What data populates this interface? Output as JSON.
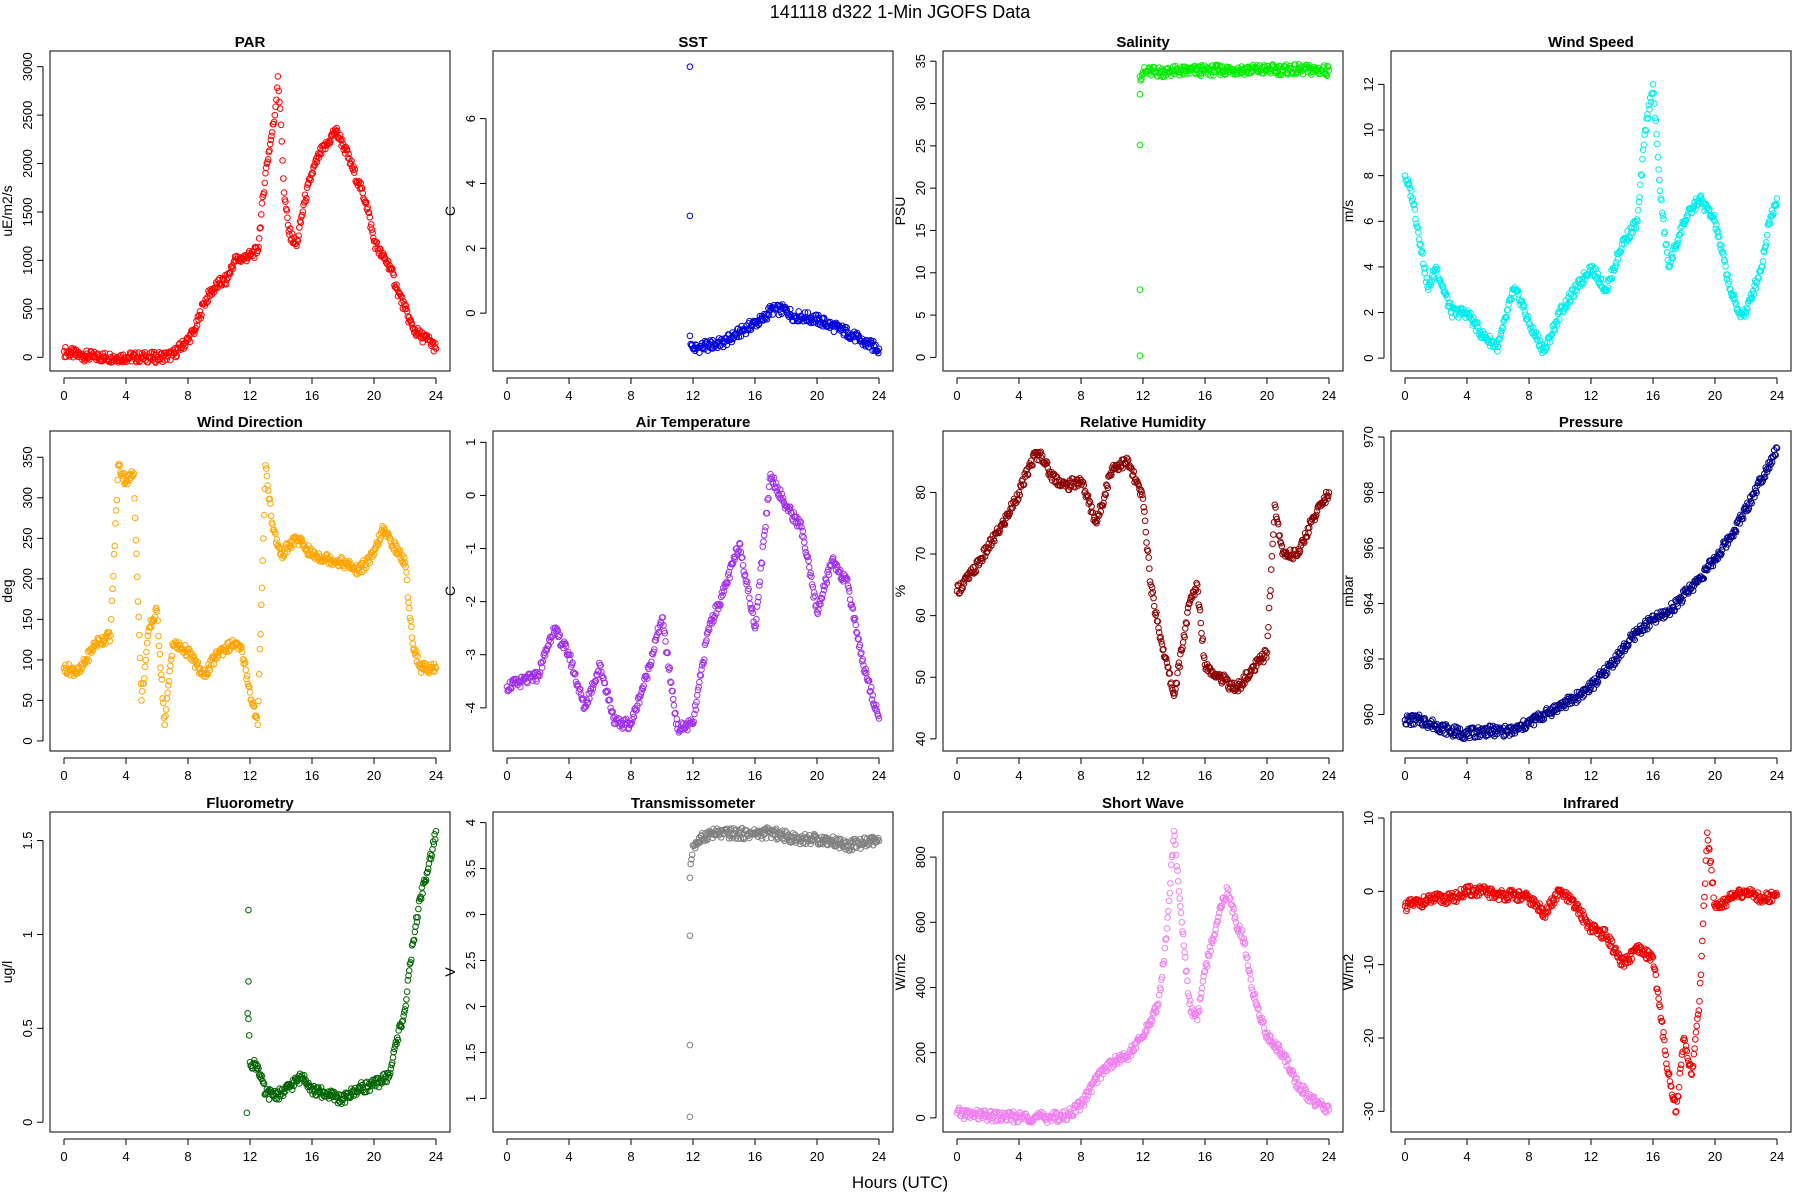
{
  "figure": {
    "suptitle": "141118   d322   1-Min  JGOFS Data",
    "xlabel": "Hours (UTC)"
  },
  "chart_data": [
    {
      "type": "scatter",
      "title": "PAR",
      "ylabel": "uE/m2/s",
      "color": "#ff0000",
      "xlim": [
        0,
        24
      ],
      "ylim": [
        -80,
        3100
      ],
      "xticks": [
        0,
        4,
        8,
        12,
        16,
        20,
        24
      ],
      "yticks": [
        0,
        500,
        1000,
        1500,
        2000,
        2500,
        3000
      ],
      "x": [
        0,
        1,
        2,
        3,
        4,
        5,
        6,
        7,
        8,
        8.5,
        9,
        9.5,
        10,
        10.5,
        11,
        11.5,
        12,
        12.5,
        13,
        13.3,
        13.6,
        13.8,
        14,
        14.2,
        14.5,
        15,
        15.5,
        16,
        16.5,
        17,
        17.5,
        18,
        18.5,
        19,
        19.5,
        20,
        20.5,
        21,
        21.5,
        22,
        22.5,
        23,
        23.5,
        24
      ],
      "y": [
        60,
        20,
        5,
        0,
        0,
        0,
        0,
        20,
        180,
        300,
        550,
        680,
        760,
        800,
        1000,
        1020,
        1050,
        1100,
        1900,
        2200,
        2500,
        2900,
        2400,
        1700,
        1300,
        1150,
        1600,
        1900,
        2100,
        2200,
        2350,
        2200,
        2000,
        1800,
        1600,
        1200,
        1050,
        950,
        700,
        500,
        300,
        220,
        180,
        90
      ]
    },
    {
      "type": "scatter",
      "title": "SST",
      "ylabel": "C",
      "color": "#0000dd",
      "xlim": [
        0,
        24
      ],
      "ylim": [
        -1.6,
        7.9
      ],
      "xticks": [
        0,
        4,
        8,
        12,
        16,
        20,
        24
      ],
      "yticks": [
        0,
        2,
        4,
        6
      ],
      "x": [
        11.8,
        11.8,
        11.8,
        11.9,
        12,
        13,
        14,
        15,
        16,
        16.5,
        17,
        18,
        18.5,
        19,
        20,
        21,
        22,
        23,
        24
      ],
      "y": [
        7.6,
        3.0,
        -0.7,
        -1.0,
        -1.1,
        -1.0,
        -0.9,
        -0.6,
        -0.3,
        -0.2,
        0.1,
        0.1,
        -0.1,
        -0.1,
        -0.2,
        -0.4,
        -0.6,
        -0.9,
        -1.1
      ]
    },
    {
      "type": "scatter",
      "title": "Salinity",
      "ylabel": "PSU",
      "color": "#00ee00",
      "xlim": [
        0,
        24
      ],
      "ylim": [
        -0.9,
        35.5
      ],
      "xticks": [
        0,
        4,
        8,
        12,
        16,
        20,
        24
      ],
      "yticks": [
        0,
        5,
        10,
        15,
        20,
        25,
        30,
        35
      ],
      "x": [
        11.8,
        11.8,
        11.8,
        11.8,
        11.8,
        12,
        14,
        16,
        18,
        20,
        22,
        24
      ],
      "y": [
        0.2,
        8.0,
        25.1,
        31.1,
        33.2,
        33.7,
        33.8,
        33.9,
        34.0,
        34.0,
        34.0,
        33.9
      ]
    },
    {
      "type": "scatter",
      "title": "Wind Speed",
      "ylabel": "m/s",
      "color": "#00eeee",
      "xlim": [
        0,
        24
      ],
      "ylim": [
        -0.3,
        13.2
      ],
      "xticks": [
        0,
        4,
        8,
        12,
        16,
        20,
        24
      ],
      "yticks": [
        0,
        2,
        4,
        6,
        8,
        10,
        12
      ],
      "x": [
        0,
        0.5,
        1,
        1.5,
        2,
        3,
        4,
        5,
        6,
        7,
        7.5,
        8,
        9,
        10,
        11,
        12,
        13,
        14,
        15,
        15.5,
        16,
        16.5,
        17,
        18,
        19,
        20,
        21,
        21.5,
        22,
        23,
        23.5,
        24
      ],
      "y": [
        8,
        7,
        5,
        3,
        4,
        2,
        2,
        1,
        0.5,
        3,
        2.5,
        1.5,
        0.3,
        2,
        3,
        4,
        3,
        5,
        6,
        10,
        12,
        7,
        4,
        6,
        7,
        6,
        3,
        2,
        2,
        4,
        6,
        7
      ]
    },
    {
      "type": "scatter",
      "title": "Wind Direction",
      "ylabel": "deg",
      "color": "#ffa500",
      "xlim": [
        0,
        24
      ],
      "ylim": [
        -5,
        375
      ],
      "xticks": [
        0,
        4,
        8,
        12,
        16,
        20,
        24
      ],
      "yticks": [
        0,
        50,
        100,
        150,
        200,
        250,
        300,
        350
      ],
      "x": [
        0,
        1,
        2,
        3,
        3.5,
        4,
        4.5,
        5,
        5.5,
        6,
        6.5,
        7,
        8,
        9,
        10,
        11,
        11.5,
        12,
        12.5,
        13,
        13.5,
        14,
        15,
        16,
        17,
        18,
        19,
        20,
        20.5,
        21,
        22,
        22.5,
        23,
        24
      ],
      "y": [
        90,
        85,
        120,
        130,
        340,
        320,
        330,
        50,
        140,
        160,
        20,
        120,
        110,
        80,
        110,
        120,
        110,
        60,
        20,
        340,
        260,
        230,
        250,
        230,
        225,
        220,
        210,
        230,
        260,
        250,
        220,
        120,
        90,
        90
      ]
    },
    {
      "type": "scatter",
      "title": "Air Temperature",
      "ylabel": "C",
      "color": "#a030ee",
      "xlim": [
        0,
        24
      ],
      "ylim": [
        -4.7,
        1.1
      ],
      "xticks": [
        0,
        4,
        8,
        12,
        16,
        20,
        24
      ],
      "yticks": [
        -4,
        -3,
        -2,
        -1,
        0,
        1
      ],
      "x": [
        0,
        1,
        2,
        3,
        4,
        5,
        6,
        7,
        8,
        9,
        10,
        11,
        12,
        13,
        14,
        15,
        16,
        17,
        18,
        19,
        20,
        21,
        22,
        23,
        24
      ],
      "y": [
        -3.6,
        -3.5,
        -3.4,
        -2.5,
        -3.0,
        -4.0,
        -3.2,
        -4.3,
        -4.3,
        -3.4,
        -2.3,
        -4.4,
        -4.3,
        -2.5,
        -1.8,
        -0.9,
        -2.5,
        0.4,
        -0.2,
        -0.6,
        -2.2,
        -1.2,
        -1.7,
        -3.2,
        -4.2
      ]
    },
    {
      "type": "scatter",
      "title": "Relative Humidity",
      "ylabel": "%",
      "color": "#8b0000",
      "xlim": [
        0,
        24
      ],
      "ylim": [
        39,
        89
      ],
      "xticks": [
        0,
        4,
        8,
        12,
        16,
        20,
        24
      ],
      "yticks": [
        40,
        50,
        60,
        70,
        80
      ],
      "x": [
        0,
        1,
        2,
        3,
        4,
        5,
        5.5,
        6,
        7,
        8,
        9,
        10,
        11,
        12,
        12.5,
        13,
        14,
        15,
        15.5,
        16,
        17,
        18,
        19,
        20,
        20.5,
        21,
        22,
        23,
        24
      ],
      "y": [
        64,
        67,
        71,
        75,
        80,
        86,
        86,
        83,
        81,
        82,
        75,
        84,
        85,
        79,
        65,
        58,
        47,
        62,
        65,
        52,
        50,
        48,
        51,
        54,
        78,
        70,
        70,
        76,
        80
      ]
    },
    {
      "type": "scatter",
      "title": "Pressure",
      "ylabel": "mbar",
      "color": "#00008b",
      "xlim": [
        0,
        24
      ],
      "ylim": [
        958.9,
        970
      ],
      "xticks": [
        0,
        4,
        8,
        12,
        16,
        20,
        24
      ],
      "yticks": [
        960,
        962,
        964,
        966,
        968,
        970
      ],
      "x": [
        0,
        1,
        2,
        3,
        4,
        5,
        6,
        7,
        8,
        9,
        10,
        11,
        12,
        13,
        14,
        15,
        16,
        17,
        18,
        19,
        20,
        21,
        22,
        23,
        24
      ],
      "y": [
        959.8,
        959.8,
        959.6,
        959.4,
        959.3,
        959.4,
        959.4,
        959.4,
        959.7,
        960.0,
        960.3,
        960.6,
        961.0,
        961.6,
        962.3,
        963.0,
        963.4,
        963.7,
        964.3,
        964.9,
        965.6,
        966.4,
        967.4,
        968.5,
        969.6
      ]
    },
    {
      "type": "scatter",
      "title": "Fluorometry",
      "ylabel": "ug/l",
      "color": "#006400",
      "xlim": [
        0,
        24
      ],
      "ylim": [
        -0.02,
        1.62
      ],
      "xticks": [
        0,
        4,
        8,
        12,
        16,
        20,
        24
      ],
      "yticks": [
        0,
        0.5,
        1,
        1.5
      ],
      "x": [
        11.8,
        11.9,
        11.9,
        11.9,
        12,
        12.5,
        13,
        14,
        15,
        15.5,
        16,
        17,
        18,
        19,
        20,
        21,
        21.5,
        22,
        22.5,
        23,
        23.5,
        24
      ],
      "y": [
        0.05,
        1.13,
        0.75,
        0.55,
        0.32,
        0.3,
        0.15,
        0.15,
        0.22,
        0.25,
        0.17,
        0.15,
        0.12,
        0.18,
        0.2,
        0.25,
        0.45,
        0.6,
        0.95,
        1.2,
        1.35,
        1.55
      ]
    },
    {
      "type": "scatter",
      "title": "Transmissometer",
      "ylabel": "V",
      "color": "#808080",
      "xlim": [
        0,
        24
      ],
      "ylim": [
        0.7,
        4.05
      ],
      "xticks": [
        0,
        4,
        8,
        12,
        16,
        20,
        24
      ],
      "yticks": [
        1,
        1.5,
        2,
        2.5,
        3,
        3.5,
        4
      ],
      "x": [
        11.8,
        11.8,
        11.8,
        11.8,
        11.9,
        12,
        13,
        14,
        16,
        17,
        18,
        19,
        20,
        21,
        22,
        23,
        24
      ],
      "y": [
        0.8,
        1.58,
        2.77,
        3.4,
        3.6,
        3.75,
        3.88,
        3.88,
        3.88,
        3.89,
        3.85,
        3.82,
        3.82,
        3.8,
        3.75,
        3.78,
        3.8
      ]
    },
    {
      "type": "scatter",
      "title": "Short Wave",
      "ylabel": "W/m2",
      "color": "#ee82ee",
      "xlim": [
        0,
        24
      ],
      "ylim": [
        -25,
        920
      ],
      "xticks": [
        0,
        4,
        8,
        12,
        16,
        20,
        24
      ],
      "yticks": [
        0,
        200,
        400,
        600,
        800
      ],
      "x": [
        0,
        1,
        2,
        3,
        4,
        5,
        6,
        7,
        8,
        8.5,
        9,
        9.5,
        10,
        11,
        12,
        13,
        13.5,
        14,
        14.5,
        15,
        15.5,
        16,
        16.5,
        17,
        17.5,
        18,
        18.5,
        19,
        20,
        21,
        22,
        23,
        24
      ],
      "y": [
        15,
        10,
        5,
        3,
        2,
        2,
        2,
        5,
        40,
        80,
        120,
        150,
        170,
        190,
        250,
        350,
        550,
        880,
        600,
        350,
        300,
        450,
        550,
        650,
        700,
        600,
        550,
        400,
        250,
        200,
        100,
        50,
        25
      ]
    },
    {
      "type": "scatter",
      "title": "Infrared",
      "ylabel": "W/m2",
      "color": "#ee0000",
      "xlim": [
        0,
        24
      ],
      "ylim": [
        -32,
        10
      ],
      "xticks": [
        0,
        4,
        8,
        12,
        16,
        20,
        24
      ],
      "yticks": [
        -30,
        -20,
        -10,
        0,
        10
      ],
      "x": [
        0,
        1,
        2,
        3,
        4,
        5,
        6,
        7,
        8,
        9,
        10,
        11,
        12,
        13,
        14,
        15,
        16,
        17,
        17.5,
        18,
        18.5,
        19,
        19.5,
        20,
        21,
        22,
        23,
        24
      ],
      "y": [
        -2,
        -1.5,
        -1,
        -1,
        0,
        0,
        -0.5,
        -0.5,
        -1,
        -3,
        0,
        -2,
        -5,
        -6,
        -10,
        -8,
        -9,
        -25,
        -30,
        -20,
        -25,
        -15,
        8,
        -2,
        -1,
        0,
        -1,
        -0.5
      ]
    }
  ]
}
